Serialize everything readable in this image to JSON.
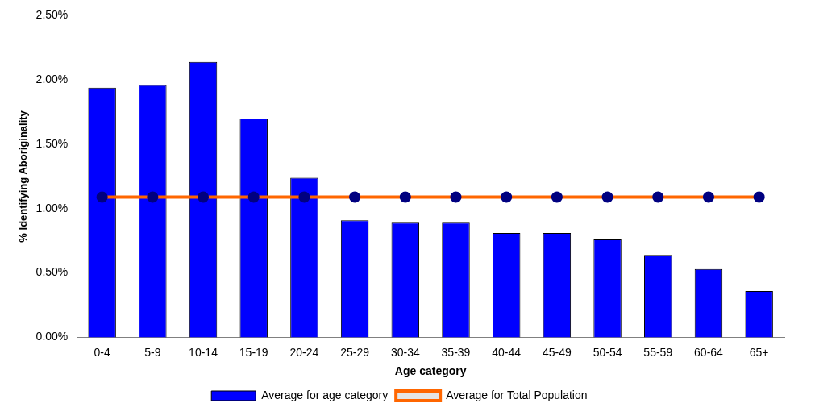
{
  "chart_data": {
    "type": "bar",
    "xlabel": "Age category",
    "ylabel": "% Identifying Aboriginality",
    "categories": [
      "0-4",
      "5-9",
      "10-14",
      "15-19",
      "20-24",
      "25-29",
      "30-34",
      "35-39",
      "40-44",
      "45-49",
      "50-54",
      "55-59",
      "60-64",
      "65+"
    ],
    "series": [
      {
        "name": "Average for age category",
        "color": "#0000ff",
        "values": [
          1.94,
          1.96,
          2.14,
          1.7,
          1.24,
          0.91,
          0.89,
          0.89,
          0.81,
          0.81,
          0.76,
          0.64,
          0.53,
          0.36
        ]
      },
      {
        "name": "Average for Total Population",
        "type": "line",
        "color": "#ff6600",
        "marker": "circle",
        "values": [
          1.09,
          1.09,
          1.09,
          1.09,
          1.09,
          1.09,
          1.09,
          1.09,
          1.09,
          1.09,
          1.09,
          1.09,
          1.09,
          1.09
        ]
      }
    ],
    "ylim": [
      0,
      2.5
    ],
    "yticks": [
      {
        "value": 0,
        "label": "0.00%"
      },
      {
        "value": 0.5,
        "label": "0.50%"
      },
      {
        "value": 1,
        "label": "1.00%"
      },
      {
        "value": 1.5,
        "label": "1.50%"
      },
      {
        "value": 2,
        "label": "2.00%"
      },
      {
        "value": 2.5,
        "label": "2.50%"
      }
    ],
    "grid": false,
    "legend": "bottom"
  }
}
